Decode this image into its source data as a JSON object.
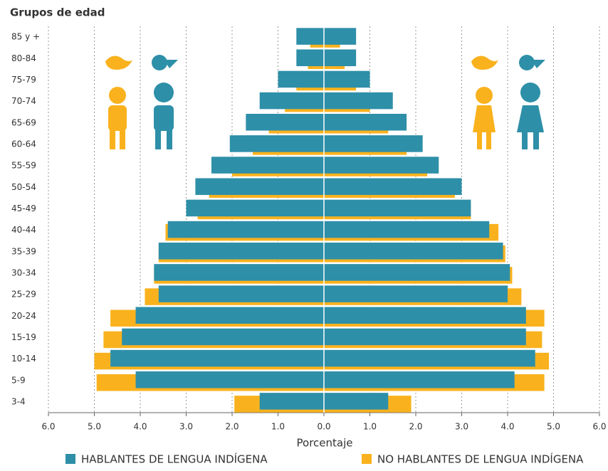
{
  "chart_data": {
    "type": "pyramid",
    "title": "Grupos de edad",
    "x_label": "Porcentaje",
    "categories": [
      "85 y +",
      "80-84",
      "75-79",
      "70-74",
      "65-69",
      "60-64",
      "55-59",
      "50-54",
      "45-49",
      "40-44",
      "35-39",
      "30-34",
      "25-29",
      "20-24",
      "15-19",
      "10-14",
      "5-9",
      "3-4"
    ],
    "series": [
      {
        "name": "NO HABLANTES DE LENGUA INDÍGENA",
        "color": "#f9b21d",
        "male": [
          -0.3,
          -0.35,
          -0.6,
          -0.85,
          -1.2,
          -1.55,
          -2.0,
          -2.5,
          -2.75,
          -3.45,
          -3.6,
          -3.7,
          -3.9,
          -4.65,
          -4.8,
          -5.0,
          -4.95,
          -1.95
        ],
        "female": [
          0.35,
          0.45,
          0.7,
          1.0,
          1.4,
          1.8,
          2.25,
          2.85,
          3.2,
          3.8,
          3.95,
          4.1,
          4.3,
          4.8,
          4.75,
          4.9,
          4.8,
          1.9
        ]
      },
      {
        "name": "HABLANTES DE LENGUA INDÍGENA",
        "color": "#2e8fa8",
        "male": [
          -0.6,
          -0.6,
          -1.0,
          -1.4,
          -1.7,
          -2.05,
          -2.45,
          -2.8,
          -3.0,
          -3.4,
          -3.6,
          -3.7,
          -3.6,
          -4.1,
          -4.4,
          -4.65,
          -4.1,
          -1.4
        ],
        "female": [
          0.7,
          0.7,
          1.0,
          1.5,
          1.8,
          2.15,
          2.5,
          3.0,
          3.2,
          3.6,
          3.9,
          4.05,
          4.0,
          4.4,
          4.4,
          4.6,
          4.15,
          1.4
        ]
      }
    ],
    "xlim": [
      -6,
      6
    ],
    "xticks": [
      {
        "value": -6,
        "label": "6.0"
      },
      {
        "value": -5,
        "label": "5.0"
      },
      {
        "value": -4,
        "label": "4.0"
      },
      {
        "value": -3,
        "label": "3.0"
      },
      {
        "value": -2,
        "label": "2.0"
      },
      {
        "value": -1,
        "label": "1.0"
      },
      {
        "value": 0,
        "label": "0.0"
      },
      {
        "value": 1,
        "label": "1.0"
      },
      {
        "value": 2,
        "label": "2.0"
      },
      {
        "value": 3,
        "label": "3.0"
      },
      {
        "value": 4,
        "label": "4.0"
      },
      {
        "value": 5,
        "label": "5.0"
      },
      {
        "value": 6,
        "label": "6.0"
      }
    ],
    "grid": true
  }
}
